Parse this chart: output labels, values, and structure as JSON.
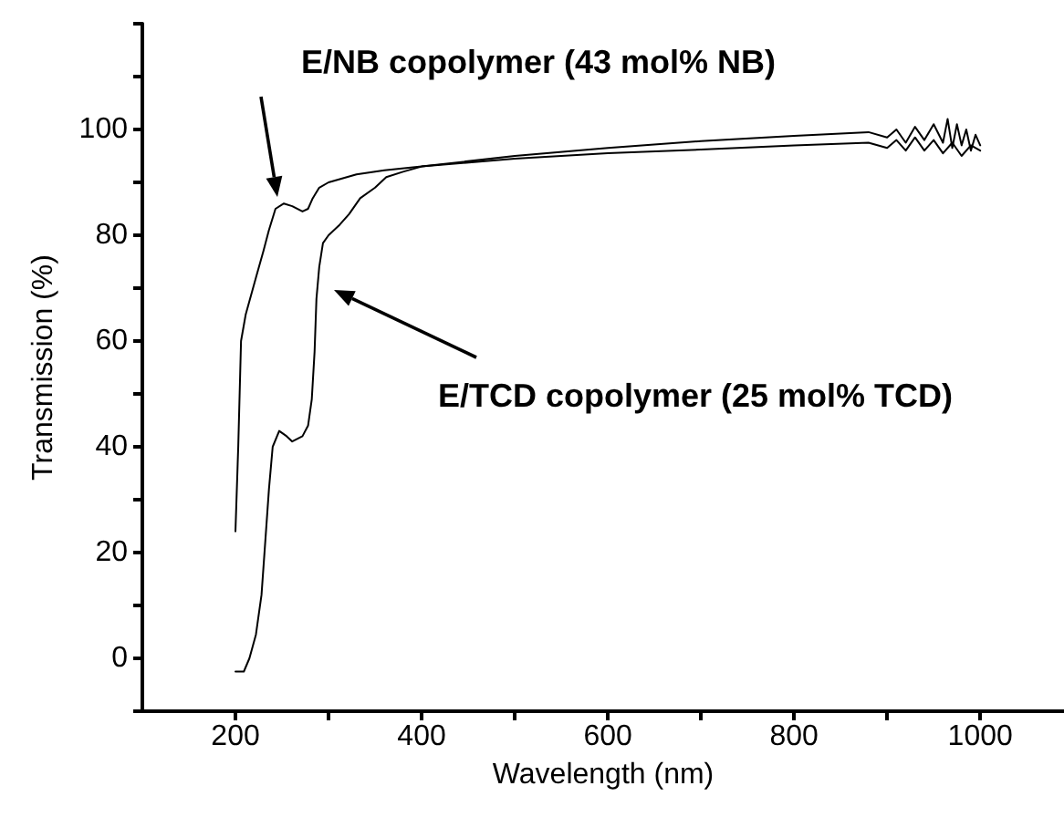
{
  "chart_data": {
    "type": "line",
    "xlabel": "Wavelength (nm)",
    "ylabel": "Transmission (%)",
    "xlim": [
      100,
      1090
    ],
    "xticks": [
      200,
      {
        "value": 300,
        "label": null
      },
      400,
      {
        "value": 500,
        "label": null
      },
      600,
      {
        "value": 700,
        "label": null
      },
      800,
      {
        "value": 900,
        "label": null
      },
      1000
    ],
    "ylim": [
      -10,
      120
    ],
    "yticks": [
      {
        "value": -10,
        "label": null
      },
      0,
      {
        "value": 10,
        "label": null
      },
      20,
      {
        "value": 30,
        "label": null
      },
      40,
      {
        "value": 50,
        "label": null
      },
      60,
      {
        "value": 70,
        "label": null
      },
      80,
      {
        "value": 90,
        "label": null
      },
      100,
      {
        "value": 110,
        "label": null
      },
      {
        "value": 120,
        "label": null
      }
    ],
    "grid": false,
    "marker": "none",
    "line_style": "solid",
    "annotations": [
      "E/NB copolymer (43 mol% NB)",
      "E/TCD copolymer (25 mol% TCD)"
    ],
    "series": [
      {
        "color": "#000000",
        "x": [
          200,
          203,
          206,
          211,
          222,
          230,
          236,
          243,
          252,
          261,
          272,
          278,
          283,
          290,
          300,
          330,
          360,
          400,
          500,
          600,
          700,
          800,
          880,
          900,
          910,
          920,
          930,
          940,
          950,
          960,
          965,
          970,
          975,
          980,
          985,
          990,
          995,
          1000
        ],
        "values": [
          24,
          40,
          60,
          65,
          72,
          77,
          81,
          85,
          86,
          85.5,
          84.5,
          85,
          87,
          89,
          90,
          91.5,
          92.3,
          93,
          95,
          96.5,
          97.8,
          98.8,
          99.5,
          98.5,
          100,
          97.5,
          100.5,
          98,
          101,
          97.5,
          102,
          96.5,
          101,
          97,
          100,
          96,
          99,
          97
        ]
      },
      {
        "color": "#000000",
        "x": [
          200,
          209,
          215,
          222,
          228,
          232,
          236,
          240,
          247,
          255,
          261,
          272,
          278,
          282,
          285,
          287,
          290,
          294,
          300,
          312,
          322,
          334,
          350,
          362,
          380,
          400,
          500,
          600,
          700,
          800,
          880,
          900,
          910,
          920,
          930,
          940,
          950,
          960,
          970,
          980,
          990,
          1000
        ],
        "values": [
          -2.5,
          -2.5,
          0,
          4.5,
          12,
          22,
          32,
          40,
          43,
          42,
          41,
          42,
          44,
          49,
          58,
          68,
          74,
          78.5,
          80,
          82,
          84,
          87,
          89,
          91,
          92,
          93,
          94.5,
          95.5,
          96.2,
          97,
          97.5,
          96.5,
          98,
          96,
          98.5,
          96,
          98,
          95.5,
          97.5,
          95,
          97,
          96
        ]
      }
    ]
  }
}
